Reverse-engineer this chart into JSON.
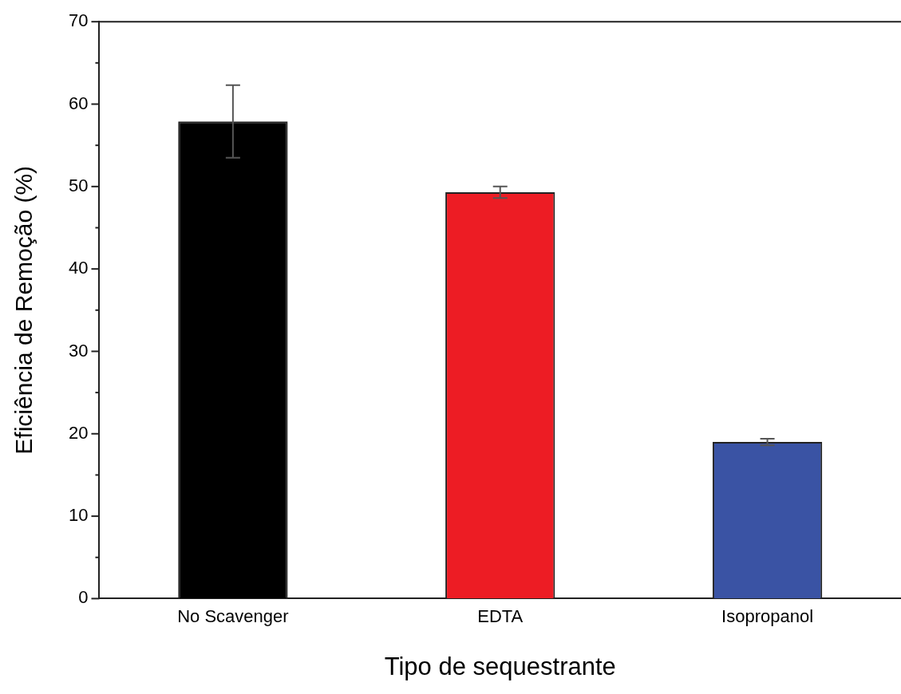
{
  "chart_data": {
    "type": "bar",
    "xlabel": "Tipo de sequestrante",
    "ylabel": "Eficiência de Remoção (%)",
    "categories": [
      "No Scavenger",
      "EDTA",
      "Isopropanol"
    ],
    "values": [
      57.9,
      49.3,
      19.0
    ],
    "colors": [
      "#000000",
      "#ed1c24",
      "#3a53a4"
    ],
    "errors": [
      4.4,
      0.7,
      0.4
    ],
    "ylim": [
      0,
      70
    ],
    "yticks": [
      0,
      {
        "value": 5,
        "label": null
      },
      10,
      {
        "value": 15,
        "label": null
      },
      20,
      {
        "value": 25,
        "label": null
      },
      30,
      {
        "value": 35,
        "label": null
      },
      40,
      {
        "value": 45,
        "label": null
      },
      50,
      {
        "value": 55,
        "label": null
      },
      60,
      {
        "value": 65,
        "label": null
      },
      70
    ],
    "grid": false,
    "legend": false
  }
}
